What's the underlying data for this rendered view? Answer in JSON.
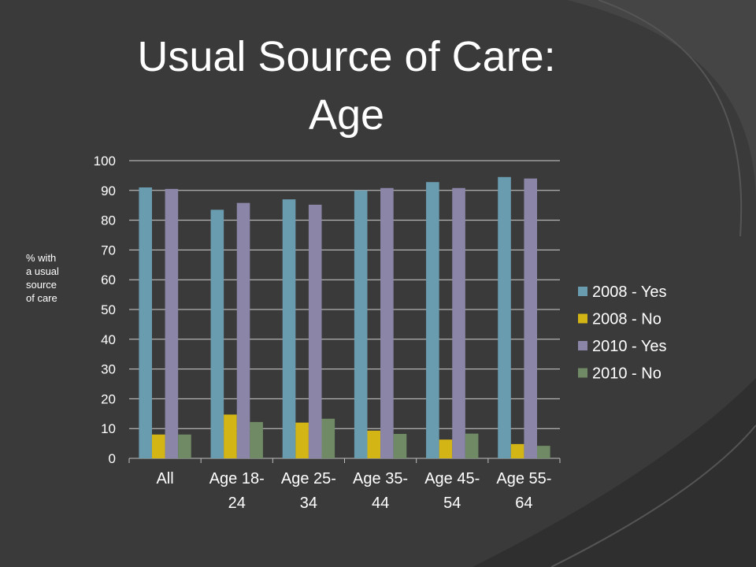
{
  "slide": {
    "title_line1": "Usual Source of Care:",
    "title_line2": "Age"
  },
  "chart_data": {
    "type": "bar",
    "ylabel": "% with a usual source of care",
    "ylabel_lines": [
      "% with",
      "a usual",
      "source",
      "of care"
    ],
    "xlabel": "",
    "ylim": [
      0,
      100
    ],
    "yticks": [
      0,
      10,
      20,
      30,
      40,
      50,
      60,
      70,
      80,
      90,
      100
    ],
    "grid": true,
    "legend_position": "right",
    "categories": [
      [
        "All"
      ],
      [
        "Age 18-",
        "24"
      ],
      [
        "Age 25-",
        "34"
      ],
      [
        "Age 35-",
        "44"
      ],
      [
        "Age 45-",
        "54"
      ],
      [
        "Age 55-",
        "64"
      ]
    ],
    "series": [
      {
        "name": "2008 - Yes",
        "color": "#6a9cb0",
        "values": [
          91,
          83.5,
          87,
          90,
          92.8,
          94.5
        ]
      },
      {
        "name": "2008 - No",
        "color": "#d4b516",
        "values": [
          8,
          14.7,
          12,
          9.3,
          6.3,
          4.8
        ]
      },
      {
        "name": "2010 - Yes",
        "color": "#8b86a8",
        "values": [
          90.5,
          85.8,
          85.2,
          90.8,
          90.8,
          94
        ]
      },
      {
        "name": "2010 - No",
        "color": "#6f8a64",
        "values": [
          8,
          12.2,
          13.3,
          8.2,
          8.3,
          4.2
        ]
      }
    ]
  }
}
